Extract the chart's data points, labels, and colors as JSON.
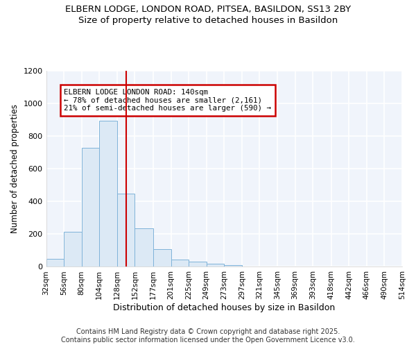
{
  "title_line1": "ELBERN LODGE, LONDON ROAD, PITSEA, BASILDON, SS13 2BY",
  "title_line2": "Size of property relative to detached houses in Basildon",
  "xlabel": "Distribution of detached houses by size in Basildon",
  "ylabel": "Number of detached properties",
  "bin_labels": [
    "32sqm",
    "56sqm",
    "80sqm",
    "104sqm",
    "128sqm",
    "152sqm",
    "177sqm",
    "201sqm",
    "225sqm",
    "249sqm",
    "273sqm",
    "297sqm",
    "321sqm",
    "345sqm",
    "369sqm",
    "393sqm",
    "418sqm",
    "442sqm",
    "466sqm",
    "490sqm",
    "514sqm"
  ],
  "bin_edges": [
    32,
    56,
    80,
    104,
    128,
    152,
    177,
    201,
    225,
    249,
    273,
    297,
    321,
    345,
    369,
    393,
    418,
    442,
    466,
    490,
    514
  ],
  "bar_values": [
    50,
    215,
    730,
    895,
    450,
    235,
    110,
    45,
    32,
    20,
    10,
    0,
    0,
    0,
    0,
    0,
    0,
    0,
    0,
    0
  ],
  "bar_color": "#dce9f5",
  "bar_edge_color": "#7fb3d9",
  "ylim": [
    0,
    1200
  ],
  "yticks": [
    0,
    200,
    400,
    600,
    800,
    1000,
    1200
  ],
  "property_size": 140,
  "property_line_color": "#cc0000",
  "annotation_text": "ELBERN LODGE LONDON ROAD: 140sqm\n← 78% of detached houses are smaller (2,161)\n21% of semi-detached houses are larger (590) →",
  "annotation_box_color": "#ffffff",
  "annotation_border_color": "#cc0000",
  "footer_text": "Contains HM Land Registry data © Crown copyright and database right 2025.\nContains public sector information licensed under the Open Government Licence v3.0.",
  "background_color": "#ffffff",
  "plot_bg_color": "#f0f4fb",
  "grid_color": "#ffffff"
}
